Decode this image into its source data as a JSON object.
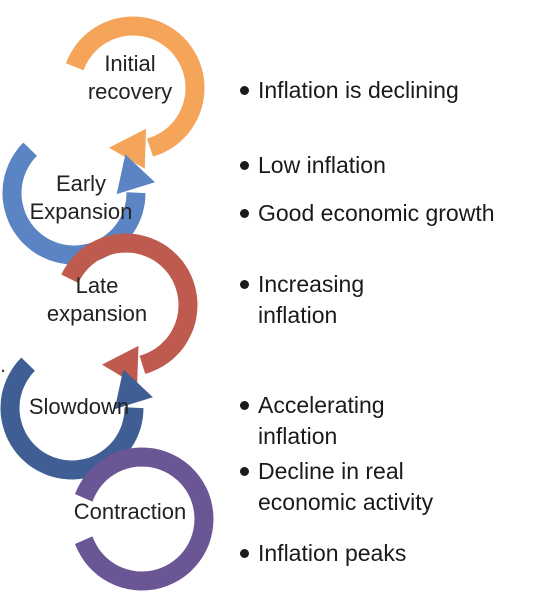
{
  "stages": [
    {
      "label": "Initial recovery",
      "lines": [
        "Initial",
        "recovery"
      ],
      "color": "#F4A559"
    },
    {
      "label": "Early Expansion",
      "lines": [
        "Early",
        "Expansion"
      ],
      "color": "#5B84C4"
    },
    {
      "label": "Late expansion",
      "lines": [
        "Late",
        "expansion"
      ],
      "color": "#BF5B4E"
    },
    {
      "label": "Slowdown",
      "lines": [
        "Slowdown"
      ],
      "color": "#3E5E94"
    },
    {
      "label": "Contraction",
      "lines": [
        "Contraction"
      ],
      "color": "#6A5595"
    }
  ],
  "bullets": [
    {
      "lines": [
        "Inflation is declining"
      ]
    },
    {
      "lines": [
        "Low inflation"
      ]
    },
    {
      "lines": [
        "Good economic growth"
      ]
    },
    {
      "lines": [
        "Increasing",
        "inflation"
      ]
    },
    {
      "lines": [
        "Accelerating",
        "inflation"
      ]
    },
    {
      "lines": [
        "Decline in real",
        "economic activity"
      ]
    },
    {
      "lines": [
        "Inflation peaks"
      ]
    }
  ]
}
